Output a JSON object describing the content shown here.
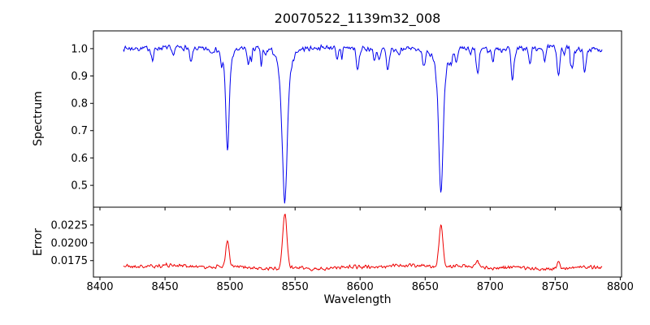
{
  "figure": {
    "title": "20070522_1139m32_008",
    "xlabel": "Wavelength",
    "background_color": "#ffffff",
    "axes_color": "#000000"
  },
  "xticks": [
    {
      "v": 8400,
      "label": "8400"
    },
    {
      "v": 8450,
      "label": "8450"
    },
    {
      "v": 8500,
      "label": "8500"
    },
    {
      "v": 8550,
      "label": "8550"
    },
    {
      "v": 8600,
      "label": "8600"
    },
    {
      "v": 8650,
      "label": "8650"
    },
    {
      "v": 8700,
      "label": "8700"
    },
    {
      "v": 8750,
      "label": "8750"
    },
    {
      "v": 8800,
      "label": "8800"
    }
  ],
  "chart_data": [
    {
      "type": "line",
      "name": "spectrum",
      "ylabel": "Spectrum",
      "line_color": "#0000ee",
      "legend": "none",
      "grid": false,
      "xlim": [
        8395,
        8801
      ],
      "ylim": [
        0.42,
        1.065
      ],
      "yticks": [
        {
          "v": 1.0,
          "label": "1.0"
        },
        {
          "v": 0.9,
          "label": "0.9"
        },
        {
          "v": 0.8,
          "label": "0.8"
        },
        {
          "v": 0.7,
          "label": "0.7"
        },
        {
          "v": 0.6,
          "label": "0.6"
        },
        {
          "v": 0.5,
          "label": "0.5"
        }
      ],
      "show_xtick_labels": false,
      "series": {
        "x_start": 8418,
        "x_end": 8786,
        "step": 0.5,
        "continuum": 1.0,
        "noise_amplitude": 0.011,
        "noise_seed": 7,
        "undulation_amplitude": 0.005,
        "major_absorption_lines": [
          {
            "center": 8498.0,
            "depth": 0.36,
            "core_width": 1.1,
            "wing_width": 2.6
          },
          {
            "center": 8542.1,
            "depth": 0.555,
            "core_width": 1.7,
            "wing_width": 4.0
          },
          {
            "center": 8662.1,
            "depth": 0.53,
            "core_width": 1.5,
            "wing_width": 3.4
          }
        ],
        "medium_absorption_lines": [
          {
            "center": 8440.5,
            "depth": 0.045,
            "width": 0.9
          },
          {
            "center": 8470.0,
            "depth": 0.055,
            "width": 1.0
          },
          {
            "center": 8514.2,
            "depth": 0.06,
            "width": 0.9
          },
          {
            "center": 8582.3,
            "depth": 0.05,
            "width": 0.9
          },
          {
            "center": 8598.0,
            "depth": 0.065,
            "width": 1.0
          },
          {
            "center": 8611.0,
            "depth": 0.045,
            "width": 0.8
          },
          {
            "center": 8621.2,
            "depth": 0.055,
            "width": 0.9
          },
          {
            "center": 8648.5,
            "depth": 0.05,
            "width": 0.9
          },
          {
            "center": 8674.0,
            "depth": 0.05,
            "width": 0.8
          },
          {
            "center": 8690.4,
            "depth": 0.095,
            "width": 1.1
          },
          {
            "center": 8702.0,
            "depth": 0.05,
            "width": 0.8
          },
          {
            "center": 8717.0,
            "depth": 0.065,
            "width": 0.9
          },
          {
            "center": 8730.5,
            "depth": 0.05,
            "width": 0.9
          },
          {
            "center": 8742.0,
            "depth": 0.045,
            "width": 0.8
          },
          {
            "center": 8752.5,
            "depth": 0.09,
            "width": 1.0
          },
          {
            "center": 8763.0,
            "depth": 0.05,
            "width": 0.8
          },
          {
            "center": 8772.5,
            "depth": 0.06,
            "width": 0.9
          }
        ],
        "minor_absorption_lines": {
          "count": 40,
          "seed": 9,
          "depth_min": 0.01,
          "depth_max": 0.05,
          "width_min": 0.4,
          "width_max": 1.1
        }
      }
    },
    {
      "type": "line",
      "name": "error",
      "ylabel": "Error",
      "line_color": "#ee0000",
      "legend": "none",
      "grid": false,
      "xlim": [
        8395,
        8801
      ],
      "ylim": [
        0.0152,
        0.025
      ],
      "yticks": [
        {
          "v": 0.0225,
          "label": "0.0225"
        },
        {
          "v": 0.02,
          "label": "0.0200"
        },
        {
          "v": 0.0175,
          "label": "0.0175"
        }
      ],
      "show_xtick_labels": true,
      "series": {
        "x_start": 8418,
        "x_end": 8786,
        "step": 0.5,
        "baseline": 0.0166,
        "noise_amplitude": 0.00032,
        "noise_seed": 21,
        "peaks": [
          {
            "center": 8498.0,
            "height": 0.0035,
            "width": 1.3
          },
          {
            "center": 8542.1,
            "height": 0.0077,
            "width": 1.6
          },
          {
            "center": 8662.1,
            "height": 0.0057,
            "width": 1.5
          },
          {
            "center": 8690.4,
            "height": 0.0009,
            "width": 1.2
          },
          {
            "center": 8752.5,
            "height": 0.0008,
            "width": 1.1
          }
        ]
      }
    }
  ]
}
